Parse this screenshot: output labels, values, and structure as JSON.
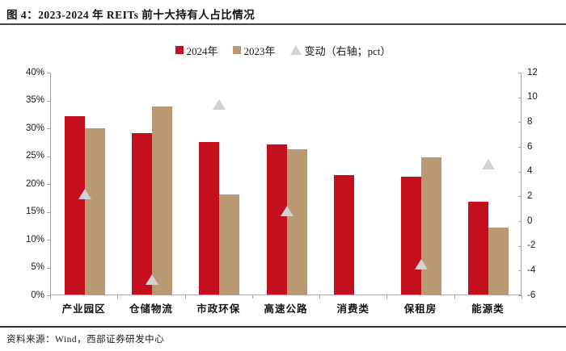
{
  "page": {
    "title": "图 4：2023-2024 年 REITs 前十大持有人占比情况",
    "footer": "资料来源：Wind，西部证券研发中心"
  },
  "colors": {
    "bar_2024": "#C40F1F",
    "bar_2023": "#BA9873",
    "change_marker": "#D2D2D2",
    "axis_line": "#A6A6A6",
    "rule_dark": "#454545"
  },
  "legend": [
    {
      "label": "2024年",
      "marker": "square",
      "color": "#C40F1F"
    },
    {
      "label": "2023年",
      "marker": "square",
      "color": "#BA9873"
    },
    {
      "label": "变动（右轴；pct）",
      "marker": "triangle",
      "color": "#D2D2D2"
    }
  ],
  "chart_data": {
    "type": "bar",
    "title": "2023-2024 年 REITs 前十大持有人占比情况",
    "categories": [
      "产业园区",
      "仓储物流",
      "市政环保",
      "高速公路",
      "消费类",
      "保租房",
      "能源类"
    ],
    "series": [
      {
        "name": "2024年",
        "type": "bar",
        "axis": "left",
        "color": "#C40F1F",
        "values": [
          32.0,
          29.0,
          27.4,
          26.9,
          21.4,
          21.2,
          16.7
        ]
      },
      {
        "name": "2023年",
        "type": "bar",
        "axis": "left",
        "color": "#BA9873",
        "values": [
          29.8,
          33.7,
          18.0,
          26.1,
          null,
          24.7,
          12.1
        ]
      },
      {
        "name": "变动（右轴；pct）",
        "type": "triangle",
        "axis": "right",
        "color": "#D2D2D2",
        "values": [
          2.2,
          -4.7,
          9.4,
          0.8,
          null,
          -3.5,
          4.6
        ]
      }
    ],
    "left_axis": {
      "min": 0,
      "max": 40,
      "step": 5,
      "tick_labels": [
        "40%",
        "35%",
        "30%",
        "25%",
        "20%",
        "15%",
        "10%",
        "5%",
        "0%"
      ]
    },
    "right_axis": {
      "min": -6,
      "max": 12,
      "step": 2,
      "tick_labels": [
        "12",
        "10",
        "8",
        "6",
        "4",
        "2",
        "0",
        "-2",
        "-4",
        "-6"
      ]
    },
    "grid": false,
    "legend_position": "top-center"
  }
}
